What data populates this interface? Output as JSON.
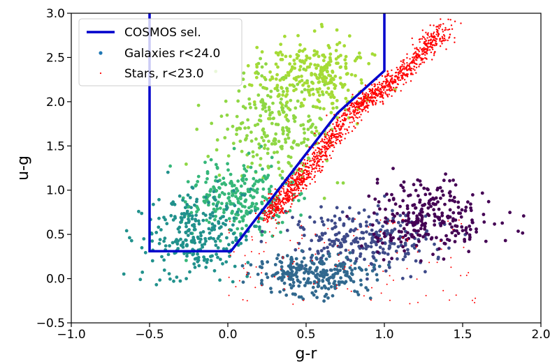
{
  "chart_data": {
    "type": "scatter",
    "xlabel": "g-r",
    "ylabel": "u-g",
    "xlim": [
      -1.0,
      2.0
    ],
    "ylim": [
      -0.5,
      3.0
    ],
    "x_ticks": [
      "−1.0",
      "−0.5",
      "0.0",
      "0.5",
      "1.0",
      "1.5",
      "2.0"
    ],
    "x_tick_values": [
      -1.0,
      -0.5,
      0.0,
      0.5,
      1.0,
      1.5,
      2.0
    ],
    "y_ticks": [
      "−0.5",
      "0.0",
      "0.5",
      "1.0",
      "1.5",
      "2.0",
      "2.5",
      "3.0"
    ],
    "y_tick_values": [
      -0.5,
      0.0,
      0.5,
      1.0,
      1.5,
      2.0,
      2.5,
      3.0
    ],
    "grid": false,
    "legend_position": "top-left",
    "series": [
      {
        "name": "COSMOS sel.",
        "kind": "line",
        "color": "#0000cc",
        "x": [
          -0.5,
          -0.5,
          0.02,
          0.7,
          1.0,
          1.0
        ],
        "y": [
          3.0,
          0.31,
          0.31,
          1.87,
          2.35,
          3.0
        ]
      },
      {
        "name": "Galaxies r<24.0",
        "kind": "scatter",
        "colormap": "viridis",
        "color": "#1f77b4",
        "clusters": [
          {
            "center": [
              0.35,
              1.7
            ],
            "spread": [
              0.35,
              0.55
            ],
            "color": "#8fd744"
          },
          {
            "center": [
              0.55,
              2.3
            ],
            "spread": [
              0.3,
              0.35
            ],
            "color": "#a5db36"
          },
          {
            "center": [
              0.1,
              0.9
            ],
            "spread": [
              0.3,
              0.35
            ],
            "color": "#35b779"
          },
          {
            "center": [
              -0.2,
              0.5
            ],
            "spread": [
              0.3,
              0.4
            ],
            "color": "#21918c"
          },
          {
            "center": [
              0.9,
              0.45
            ],
            "spread": [
              0.4,
              0.3
            ],
            "color": "#3e4a89"
          },
          {
            "center": [
              1.3,
              0.7
            ],
            "spread": [
              0.35,
              0.35
            ],
            "color": "#440154"
          },
          {
            "center": [
              0.55,
              0.05
            ],
            "spread": [
              0.3,
              0.2
            ],
            "color": "#31688e"
          }
        ]
      },
      {
        "name": "Stars, r<23.0",
        "kind": "scatter",
        "color": "#ff0000",
        "locus_x": [
          0.25,
          0.5,
          0.8,
          1.1,
          1.4
        ],
        "locus_y": [
          0.7,
          1.2,
          1.9,
          2.3,
          2.85
        ]
      }
    ]
  }
}
